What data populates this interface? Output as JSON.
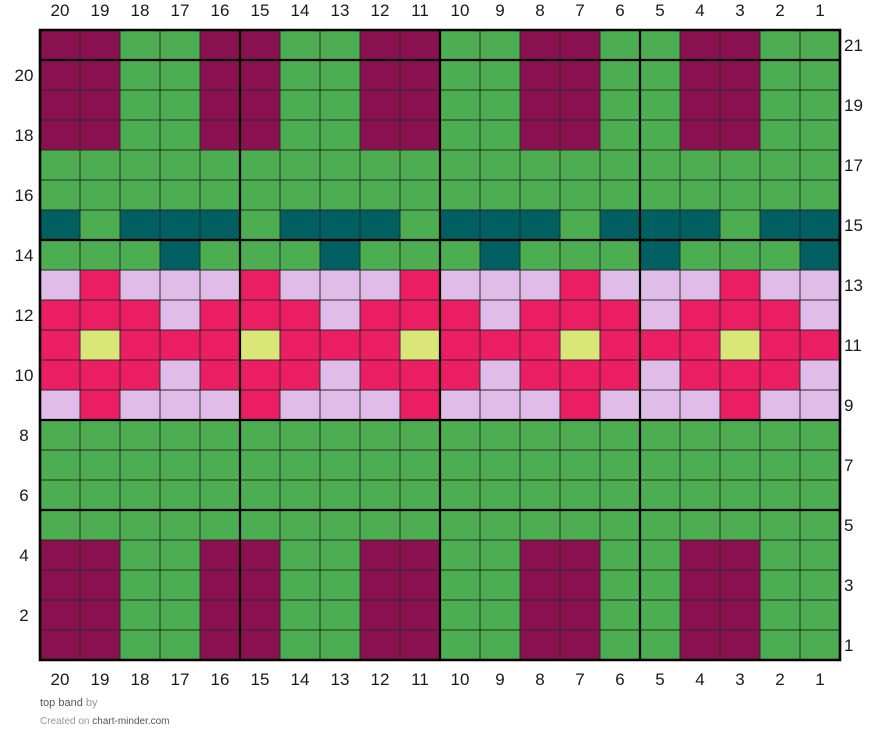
{
  "chart_data": {
    "type": "heatmap",
    "title": "top band",
    "columns": 20,
    "rows": 21,
    "column_numbers": [
      "20",
      "19",
      "18",
      "17",
      "16",
      "15",
      "14",
      "13",
      "12",
      "11",
      "10",
      "9",
      "8",
      "7",
      "6",
      "5",
      "4",
      "3",
      "2",
      "1"
    ],
    "row_numbers_left": [
      "20",
      "18",
      "16",
      "14",
      "12",
      "10",
      "8",
      "6",
      "4",
      "2"
    ],
    "row_numbers_right": [
      "21",
      "19",
      "17",
      "15",
      "13",
      "11",
      "9",
      "7",
      "5",
      "3",
      "1"
    ],
    "palette": {
      "G": "#4cae50",
      "M": "#8a1150",
      "T": "#005f61",
      "P": "#eb1e63",
      "L": "#e0bde8",
      "Y": "#dbe678"
    },
    "grid_top_to_bottom": [
      "MMGGMMGGMMGGMMGGMMGG",
      "MMGGMMGGMMGGMMGGMMGG",
      "MMGGMMGGMMGGMMGGMMGG",
      "MMGGMMGGMMGGMMGGMMGG",
      "GGGGGGGGGGGGGGGGGGGG",
      "GGGGGGGGGGGGGGGGGGGG",
      "TGTTTGTTTGTTTGTTTGTT",
      "GGGTGGGTGGGTGGGTGGGT",
      "LPLLLPLLLPLLLPLLLPLL",
      "PPPLPPPLPPPLPPPLPPPL",
      "PYPPPYPPPYPPPYPPPYPP",
      "PPPLPPPLPPPLPPPLPPPL",
      "LPLLLPLLLPLLLPLLLPLL",
      "GGGGGGGGGGGGGGGGGGGG",
      "GGGGGGGGGGGGGGGGGGGG",
      "GGGGGGGGGGGGGGGGGGGG",
      "GGGGGGGGGGGGGGGGGGGG",
      "MMGGMMGGMMGGMMGGMMGG",
      "MMGGMMGGMMGGMMGGMMGG",
      "MMGGMMGGMMGGMMGGMMGG",
      "MMGGMMGGMMGGMMGGMMGG"
    ],
    "major_vertical_every": 5,
    "major_horizontal_after_rows_from_top": [
      1,
      7,
      13,
      16
    ]
  },
  "footer": {
    "title": "top band",
    "by": "by",
    "created_on": "Created on",
    "site": "chart-minder.com"
  }
}
